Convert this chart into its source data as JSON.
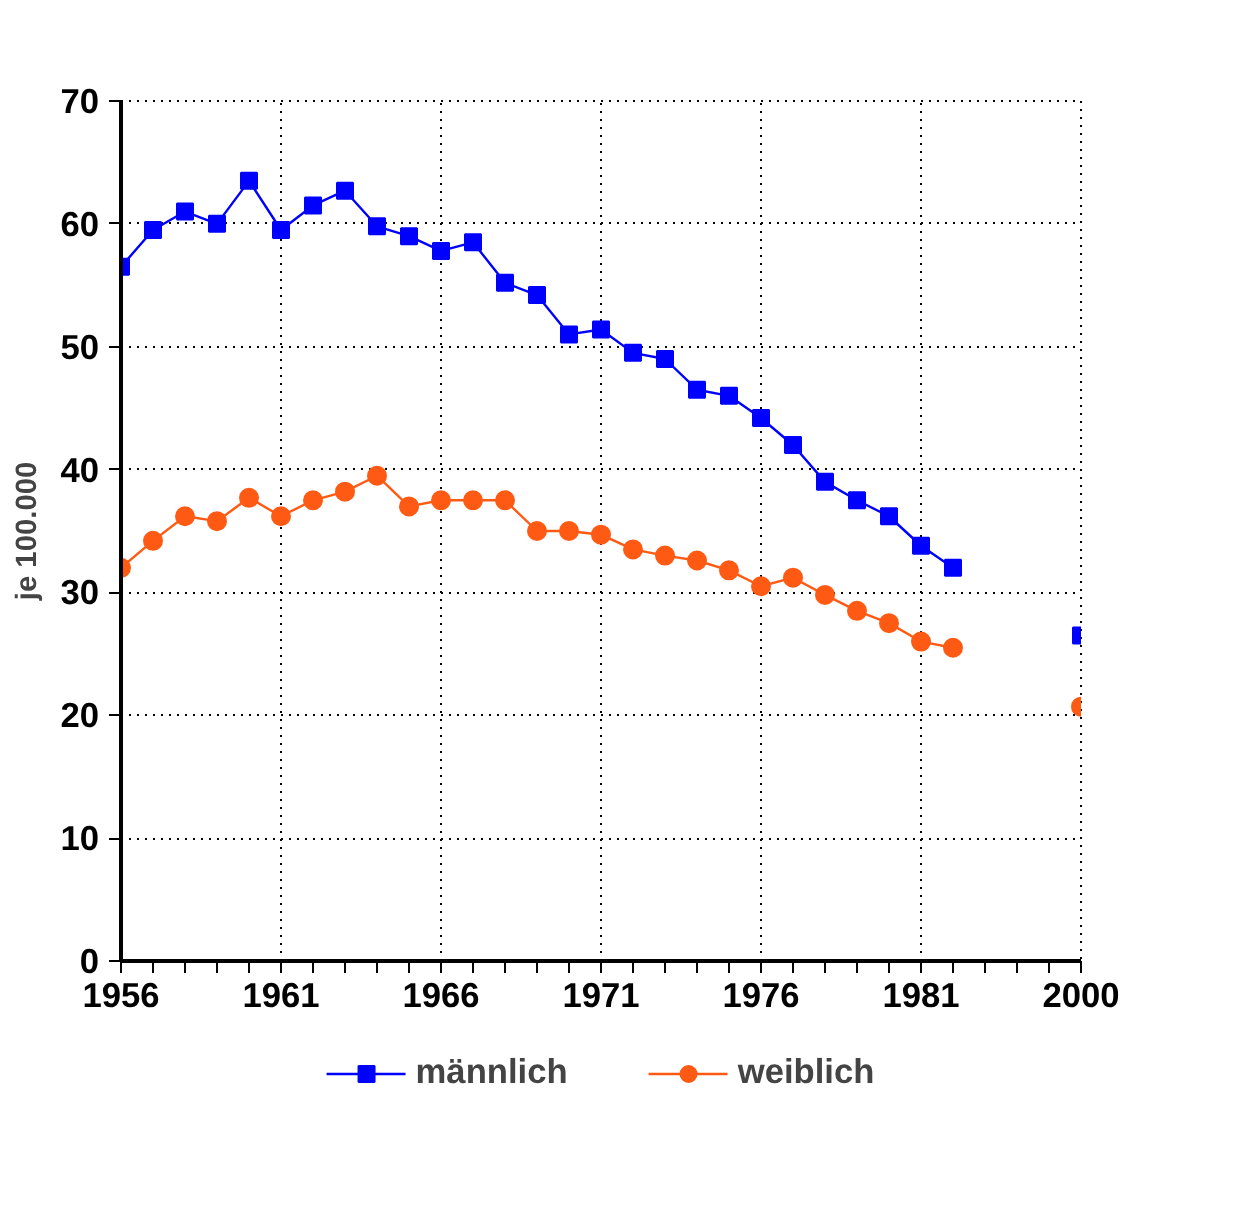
{
  "chart_data": {
    "type": "line",
    "ylabel": "je 100.000",
    "categories": [
      "1956",
      null,
      null,
      null,
      null,
      "1961",
      null,
      null,
      null,
      null,
      "1966",
      null,
      null,
      null,
      null,
      "1971",
      null,
      null,
      null,
      null,
      "1976",
      null,
      null,
      null,
      null,
      "1981",
      null,
      null,
      null,
      null,
      "2000"
    ],
    "series": [
      {
        "name": "männlich",
        "color": "#0000ff",
        "marker": "square",
        "values": [
          56.5,
          59.5,
          61,
          60,
          63.5,
          59.5,
          61.5,
          62.7,
          59.8,
          59,
          57.8,
          58.5,
          55.2,
          54.2,
          51,
          51.4,
          49.5,
          49,
          46.5,
          46,
          44.2,
          42,
          39,
          37.5,
          36.2,
          33.8,
          32,
          null,
          null,
          null,
          26.5
        ]
      },
      {
        "name": "weiblich",
        "color": "#ff5a14",
        "marker": "circle",
        "values": [
          32,
          34.2,
          36.2,
          35.8,
          37.7,
          36.2,
          37.5,
          38.2,
          39.5,
          37,
          37.5,
          37.5,
          37.5,
          35,
          35,
          34.7,
          33.5,
          33,
          32.6,
          31.8,
          30.5,
          31.2,
          29.8,
          28.5,
          27.5,
          26,
          25.5,
          null,
          null,
          null,
          20.7
        ]
      }
    ],
    "ylim": [
      0,
      70
    ],
    "yticks": [
      0,
      10,
      20,
      30,
      40,
      50,
      60,
      70
    ],
    "grid": true,
    "legend": "bottom",
    "line_style": "solid"
  }
}
